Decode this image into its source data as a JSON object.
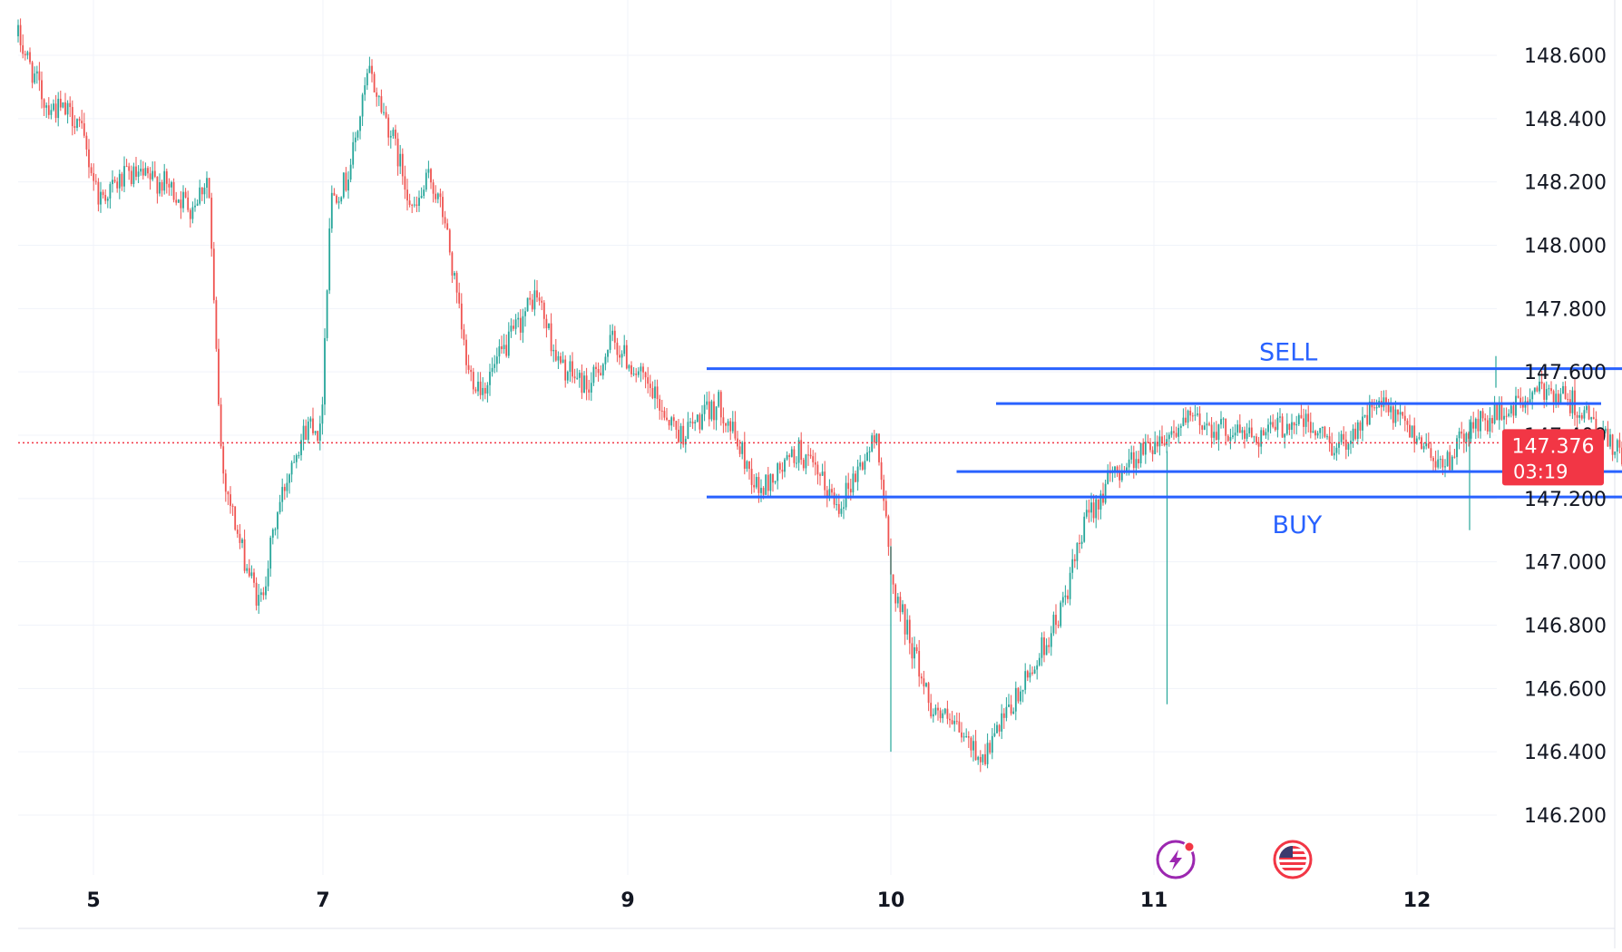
{
  "chart_data": {
    "type": "candlestick",
    "ylim": [
      146.1,
      148.75
    ],
    "y_ticks": [
      "146.200",
      "146.400",
      "146.600",
      "146.800",
      "147.000",
      "147.200",
      "147.400",
      "147.600",
      "147.800",
      "148.000",
      "148.200",
      "148.400",
      "148.600"
    ],
    "x_ticks": [
      {
        "label": "5",
        "day": 5
      },
      {
        "label": "7",
        "day": 7
      },
      {
        "label": "9",
        "day": 9
      },
      {
        "label": "10",
        "day": 10
      },
      {
        "label": "11",
        "day": 11
      },
      {
        "label": "12",
        "day": 12
      }
    ],
    "price_path": [
      [
        4.3,
        148.66
      ],
      [
        4.55,
        148.45
      ],
      [
        4.85,
        148.4
      ],
      [
        5.05,
        148.15
      ],
      [
        5.3,
        148.22
      ],
      [
        5.6,
        148.2
      ],
      [
        5.85,
        148.12
      ],
      [
        6.0,
        148.22
      ],
      [
        6.05,
        147.8
      ],
      [
        6.12,
        147.3
      ],
      [
        6.28,
        147.05
      ],
      [
        6.45,
        146.86
      ],
      [
        6.6,
        147.15
      ],
      [
        6.75,
        147.35
      ],
      [
        6.9,
        147.45
      ],
      [
        6.98,
        147.4
      ],
      [
        7.05,
        148.15
      ],
      [
        7.15,
        148.2
      ],
      [
        7.2,
        148.3
      ],
      [
        7.3,
        148.55
      ],
      [
        7.45,
        148.35
      ],
      [
        7.6,
        148.1
      ],
      [
        7.7,
        148.22
      ],
      [
        7.8,
        148.08
      ],
      [
        7.95,
        147.6
      ],
      [
        8.05,
        147.55
      ],
      [
        8.25,
        147.72
      ],
      [
        8.4,
        147.85
      ],
      [
        8.55,
        147.62
      ],
      [
        8.75,
        147.55
      ],
      [
        8.9,
        147.7
      ],
      [
        9.05,
        147.58
      ],
      [
        9.2,
        147.4
      ],
      [
        9.35,
        147.5
      ],
      [
        9.5,
        147.22
      ],
      [
        9.65,
        147.35
      ],
      [
        9.8,
        147.18
      ],
      [
        9.95,
        147.4
      ],
      [
        10.0,
        146.95
      ],
      [
        10.15,
        146.55
      ],
      [
        10.35,
        146.38
      ],
      [
        10.5,
        146.6
      ],
      [
        10.65,
        146.85
      ],
      [
        10.75,
        147.15
      ],
      [
        10.85,
        147.28
      ],
      [
        11.0,
        147.38
      ],
      [
        11.15,
        147.45
      ],
      [
        11.25,
        147.42
      ],
      [
        11.4,
        147.4
      ],
      [
        11.55,
        147.45
      ],
      [
        11.7,
        147.36
      ],
      [
        11.85,
        147.5
      ],
      [
        12.0,
        147.4
      ],
      [
        12.1,
        147.3
      ],
      [
        12.2,
        147.42
      ],
      [
        12.35,
        147.48
      ],
      [
        12.5,
        147.55
      ],
      [
        12.6,
        147.5
      ],
      [
        12.75,
        147.35
      ],
      [
        12.9,
        147.3
      ],
      [
        13.0,
        147.38
      ],
      [
        13.15,
        147.32
      ],
      [
        13.3,
        147.36
      ],
      [
        13.4,
        147.42
      ],
      [
        13.55,
        147.3
      ],
      [
        13.65,
        147.35
      ],
      [
        13.75,
        147.47
      ],
      [
        13.85,
        147.38
      ]
    ],
    "series_colors": {
      "up": "#26a69a",
      "down": "#ef5350"
    },
    "current_price": {
      "value": "147.376",
      "countdown": "03:19"
    },
    "levels": [
      {
        "price": 147.61,
        "x_from": 9.3,
        "x_to": 12.9,
        "color": "#2962ff"
      },
      {
        "price": 147.5,
        "x_from": 10.4,
        "x_to": 12.7,
        "color": "#2962ff"
      },
      {
        "price": 147.285,
        "x_from": 10.25,
        "x_to": 12.85,
        "color": "#2962ff"
      },
      {
        "price": 147.205,
        "x_from": 9.3,
        "x_to": 12.9,
        "color": "#2962ff"
      }
    ],
    "annotations": [
      {
        "text": "SELL",
        "x": 11.4,
        "price": 147.665,
        "color": "#2962ff"
      },
      {
        "text": "BUY",
        "x": 11.45,
        "price": 147.12,
        "color": "#2962ff"
      }
    ],
    "grid": true
  },
  "colors": {
    "background": "#ffffff",
    "grid": "#f0f3fa",
    "axis_text": "#131722",
    "price_tag": "#f23645",
    "price_line": "#f23645"
  },
  "icons": {
    "lightning": "lightning-icon",
    "us_flag": "us-flag-icon"
  }
}
